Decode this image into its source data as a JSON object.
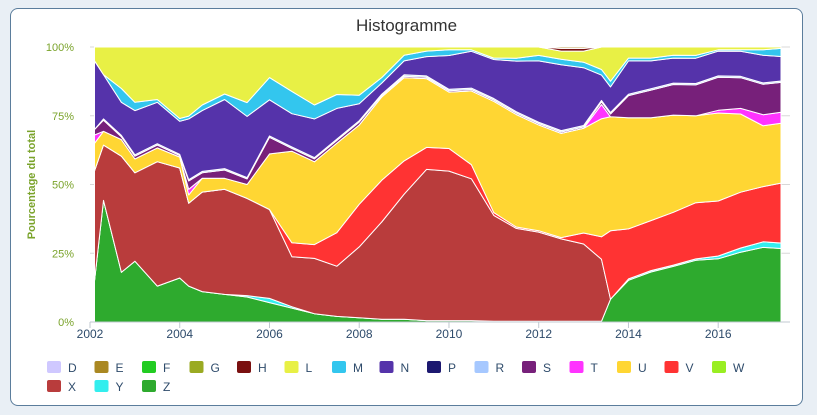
{
  "title": "Histogramme",
  "chart_data": {
    "type": "area",
    "stacking": "percent",
    "title": "Histogramme",
    "ylabel": "Pourcentage du total",
    "xlabel": "",
    "xlim": [
      2002.0,
      2017.6
    ],
    "ylim": [
      0,
      100
    ],
    "x_ticks": [
      "2002",
      "2004",
      "2006",
      "2008",
      "2010",
      "2012",
      "2014",
      "2016"
    ],
    "y_ticks": [
      "0%",
      "25%",
      "50%",
      "75%",
      "100%"
    ],
    "grid": "horizontal",
    "legend_position": "bottom",
    "x": [
      2002.1,
      2002.3,
      2002.7,
      2003.0,
      2003.5,
      2004.0,
      2004.2,
      2004.5,
      2005.0,
      2005.5,
      2006.0,
      2006.5,
      2007.0,
      2007.5,
      2008.0,
      2008.5,
      2009.0,
      2009.5,
      2010.0,
      2010.5,
      2011.0,
      2011.5,
      2012.0,
      2012.5,
      2013.0,
      2013.4,
      2013.6,
      2014.0,
      2014.5,
      2015.0,
      2015.5,
      2016.0,
      2016.5,
      2017.0,
      2017.4
    ],
    "series": [
      {
        "name": "Z",
        "color": "#2eaa2e",
        "values": [
          15,
          44,
          18,
          22,
          13,
          16,
          13,
          11,
          10,
          9,
          7,
          5,
          3,
          2,
          1.5,
          1,
          1,
          0.5,
          0.5,
          0.5,
          0.3,
          0.3,
          0.3,
          0.3,
          0.3,
          0.3,
          8,
          15,
          18,
          20,
          22,
          23,
          25,
          27,
          27
        ]
      },
      {
        "name": "Y",
        "color": "#33eeee",
        "values": [
          0,
          0,
          0,
          0,
          0,
          0,
          0,
          0,
          0,
          0.5,
          1.5,
          0.5,
          0,
          0,
          0,
          0,
          0,
          0,
          0,
          0,
          0,
          0,
          0,
          0,
          0,
          0,
          0,
          0.5,
          0.5,
          0.5,
          0.5,
          1,
          1.5,
          2,
          2
        ]
      },
      {
        "name": "X",
        "color": "#b93c3c",
        "values": [
          40,
          20,
          42,
          32,
          45,
          40,
          30,
          36,
          38,
          35,
          32,
          18,
          20,
          18,
          25,
          35,
          45,
          55,
          53,
          50,
          38,
          33,
          32,
          30,
          28,
          22,
          0,
          0,
          0,
          0,
          0,
          0,
          0,
          0,
          0
        ]
      },
      {
        "name": "V",
        "color": "#ff3333",
        "values": [
          0,
          0,
          0,
          0,
          0,
          0,
          0,
          0,
          0,
          0,
          0,
          5,
          5,
          12,
          15,
          15,
          12,
          8,
          8,
          5,
          1,
          0.5,
          0.5,
          0.5,
          4,
          8,
          24,
          18,
          18,
          19,
          20,
          20,
          20,
          20,
          22
        ]
      },
      {
        "name": "U",
        "color": "#ffd633",
        "values": [
          10,
          5,
          6,
          5,
          5,
          4,
          3,
          5,
          4,
          5,
          20,
          33,
          30,
          32,
          28,
          30,
          30,
          25,
          20,
          26,
          40,
          40,
          38,
          38,
          38,
          42,
          40,
          40,
          37,
          35,
          31,
          32,
          28,
          22,
          22
        ]
      },
      {
        "name": "T",
        "color": "#ff33ff",
        "values": [
          3,
          0,
          0,
          0,
          0,
          0,
          2,
          0,
          0,
          0,
          0,
          0,
          0,
          0,
          0,
          0,
          0,
          0,
          0,
          0,
          0,
          0,
          0,
          0,
          0,
          5,
          0,
          0,
          0,
          0,
          0,
          1,
          2,
          4,
          4
        ]
      },
      {
        "name": "S",
        "color": "#77207a",
        "values": [
          2,
          4,
          1,
          1,
          1,
          0.5,
          3,
          2,
          3,
          2,
          6,
          1,
          1,
          1,
          1,
          0.5,
          0.5,
          0.5,
          0.5,
          0.5,
          0.5,
          0.5,
          0.5,
          0.5,
          0.5,
          1,
          1,
          8,
          10,
          11,
          11,
          12,
          11,
          11,
          11
        ]
      },
      {
        "name": "R",
        "color": "#a6c8ff",
        "values": [
          0,
          0.5,
          0.5,
          0.5,
          0.5,
          0.5,
          0.5,
          0.5,
          0.5,
          0.5,
          0.5,
          0.5,
          0.5,
          0.5,
          0.5,
          0.5,
          0.5,
          0.5,
          0.5,
          0.5,
          0.5,
          0.5,
          0.5,
          0.5,
          0.5,
          0.5,
          0.5,
          0.5,
          0.5,
          0.5,
          0.5,
          0.5,
          0.5,
          0.5,
          0.5
        ]
      },
      {
        "name": "P",
        "color": "#1c1870",
        "values": [
          0,
          0,
          0,
          0,
          0,
          0,
          0,
          0,
          0,
          0,
          0,
          0,
          0,
          0,
          0,
          0,
          0,
          0,
          0,
          0,
          0,
          0,
          0,
          0,
          0,
          0,
          0,
          0,
          0,
          0,
          0,
          0,
          0,
          0,
          0
        ]
      },
      {
        "name": "N",
        "color": "#5533aa",
        "values": [
          25,
          16,
          12,
          16,
          15,
          12,
          22,
          22,
          25,
          22,
          13,
          12,
          14,
          11,
          6,
          4,
          5,
          7,
          12,
          13,
          14,
          18,
          22,
          24,
          21,
          9,
          9,
          12,
          10,
          9,
          9,
          9,
          9,
          10,
          9
        ]
      },
      {
        "name": "M",
        "color": "#33c6ee",
        "values": [
          0,
          0,
          5,
          3,
          1,
          1,
          1,
          2,
          2,
          5,
          8,
          8,
          5,
          5,
          3,
          2,
          2,
          2,
          2,
          0.5,
          0.5,
          1,
          2,
          2,
          2,
          2,
          2,
          1,
          1,
          1,
          1,
          0.5,
          0.5,
          2,
          3
        ]
      },
      {
        "name": "L",
        "color": "#e8f045",
        "values": [
          5,
          10,
          15,
          20,
          19,
          26,
          25,
          21,
          17,
          20,
          11,
          16,
          21,
          17,
          17,
          11,
          3,
          1.5,
          1,
          1,
          4,
          4,
          3,
          3,
          4,
          8,
          12,
          4,
          4,
          3,
          3,
          1,
          1,
          1,
          0.5
        ]
      },
      {
        "name": "H",
        "color": "#7a1010",
        "values": [
          0,
          0,
          0,
          0,
          0,
          0,
          0,
          0,
          0,
          0,
          0,
          0,
          0,
          0,
          0,
          0,
          0,
          0,
          0,
          0,
          0,
          0,
          0,
          1,
          1,
          0,
          0,
          0,
          0,
          0,
          0,
          0,
          0,
          0,
          0
        ]
      },
      {
        "name": "G",
        "color": "#9aaa22",
        "values": [
          0,
          0,
          0,
          0,
          0,
          0,
          0,
          0,
          0,
          0,
          0,
          0,
          0,
          0,
          0,
          0,
          0,
          0,
          0,
          0,
          0,
          0,
          0,
          0,
          0,
          0,
          0,
          0,
          0,
          0,
          0,
          0,
          0,
          0,
          0
        ]
      },
      {
        "name": "F",
        "color": "#22cc22",
        "values": [
          0,
          0,
          0,
          0,
          0,
          0,
          0,
          0,
          0,
          0,
          0,
          0,
          0,
          0,
          0,
          0,
          0,
          0,
          0,
          0,
          0,
          0,
          0,
          0,
          0,
          0,
          0,
          0,
          0,
          0,
          0,
          0,
          0,
          0,
          0
        ]
      },
      {
        "name": "E",
        "color": "#aa8822",
        "values": [
          0,
          0,
          0,
          0,
          0,
          0,
          0,
          0,
          0,
          0,
          0,
          0,
          0,
          0,
          0,
          0,
          0,
          0,
          0,
          0,
          0,
          0,
          0,
          0.5,
          0.5,
          0,
          0,
          0,
          0,
          0,
          0,
          0,
          0,
          0,
          0
        ]
      },
      {
        "name": "D",
        "color": "#cfc8ff",
        "values": [
          0,
          0,
          0,
          0,
          0,
          0,
          0,
          0,
          0,
          0,
          0,
          0,
          0,
          0,
          0,
          0,
          0,
          0,
          0,
          0,
          0,
          0,
          0,
          0,
          0,
          0,
          0,
          0,
          0,
          0,
          0,
          0,
          0,
          0,
          0
        ]
      },
      {
        "name": "W",
        "color": "#99ee22",
        "values": [
          0,
          0,
          0,
          0,
          0,
          0,
          0,
          0,
          0,
          0,
          0,
          0,
          0,
          0,
          0,
          0,
          0,
          0,
          0,
          0,
          0,
          0,
          0,
          0,
          0,
          0,
          0,
          0,
          0,
          0,
          0,
          0,
          0,
          0,
          0
        ]
      }
    ],
    "legend": [
      "D",
      "E",
      "F",
      "G",
      "H",
      "L",
      "M",
      "N",
      "P",
      "R",
      "S",
      "T",
      "U",
      "V",
      "W",
      "X",
      "Y",
      "Z"
    ]
  }
}
